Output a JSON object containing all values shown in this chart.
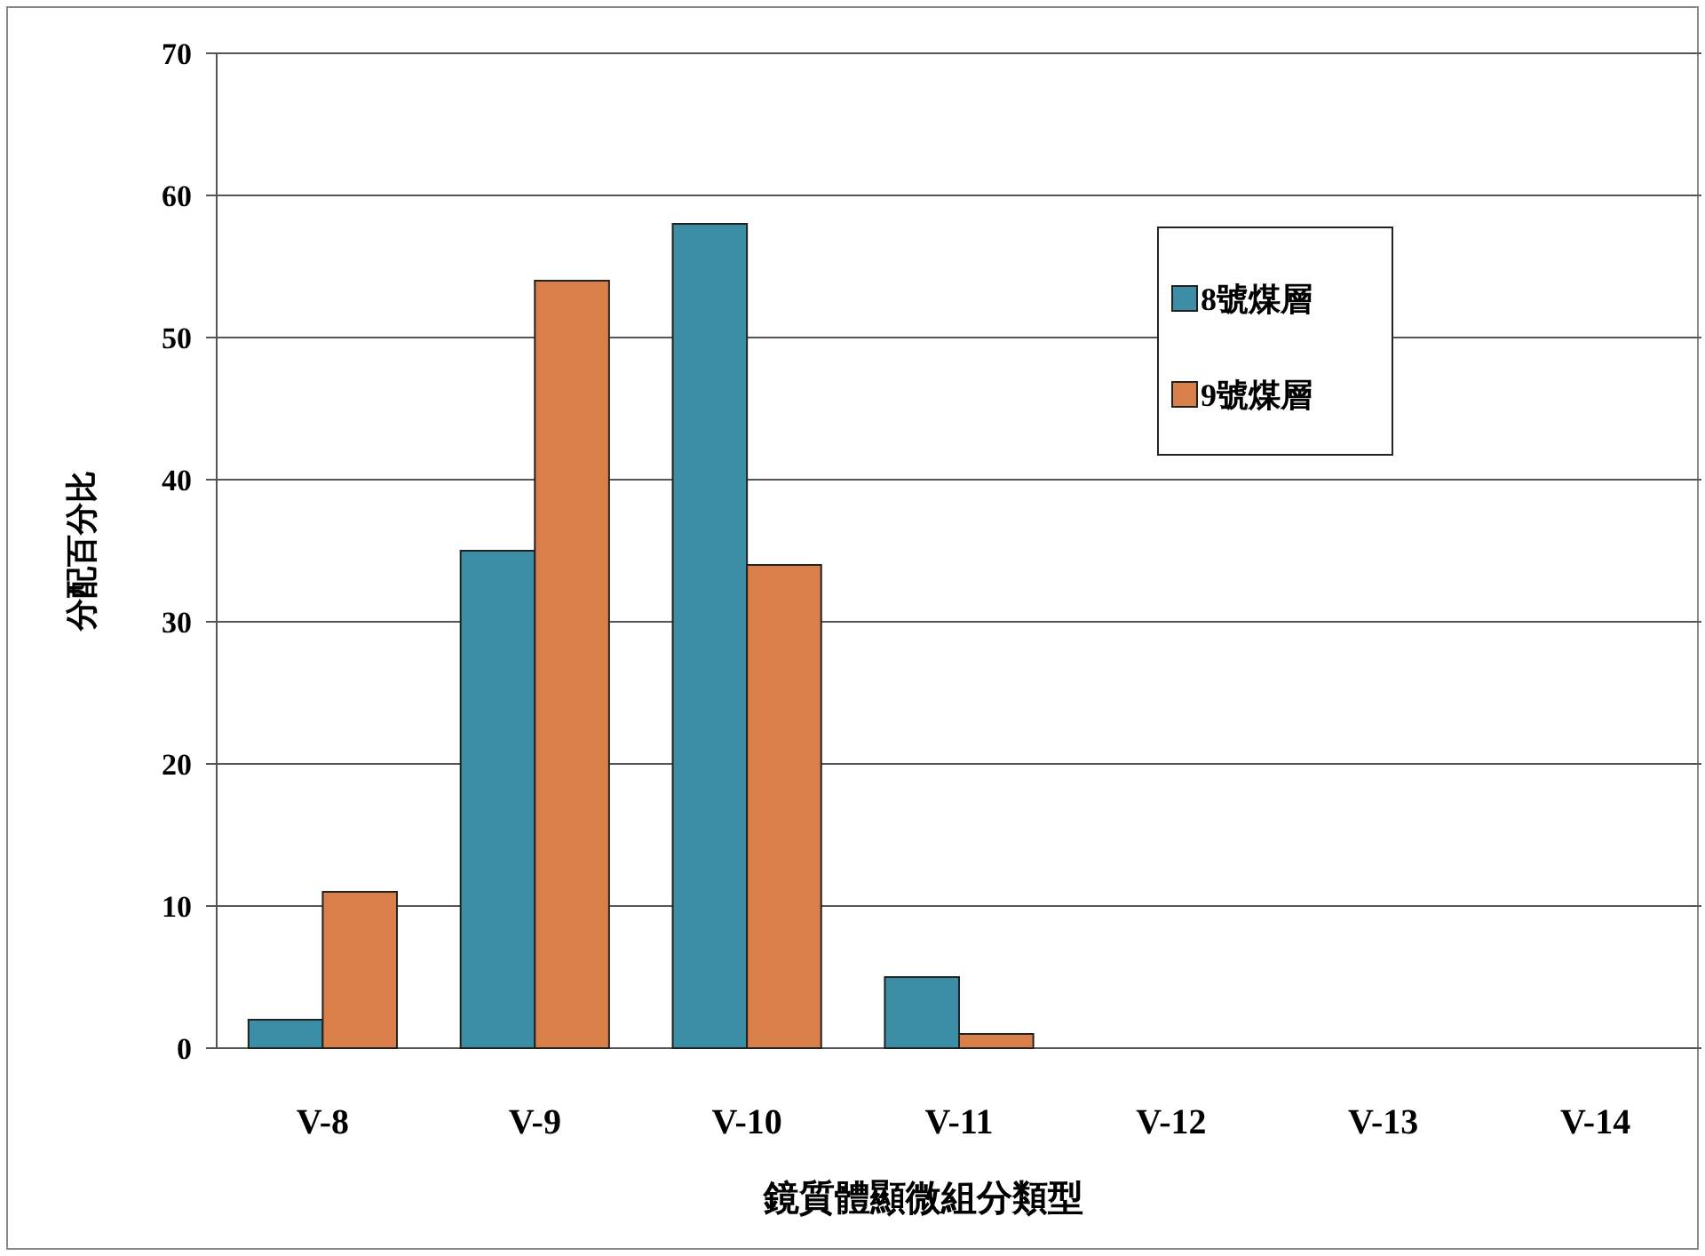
{
  "chart_data": {
    "type": "bar",
    "xlabel": "鏡質體顯微組分類型",
    "ylabel": "分配百分比",
    "categories": [
      "V-8",
      "V-9",
      "V-10",
      "V-11",
      "V-12",
      "V-13",
      "V-14"
    ],
    "series": [
      {
        "name": "8號煤層",
        "color": "#3b8ea5",
        "values": [
          2,
          35,
          58,
          5,
          0,
          0,
          0
        ]
      },
      {
        "name": "9號煤層",
        "color": "#d9804a",
        "values": [
          11,
          54,
          34,
          1,
          0,
          0,
          0
        ]
      }
    ],
    "ylim": [
      0,
      70
    ],
    "yticks": [
      0,
      10,
      20,
      30,
      40,
      50,
      60,
      70
    ],
    "grid": "y",
    "legend": "top right"
  }
}
